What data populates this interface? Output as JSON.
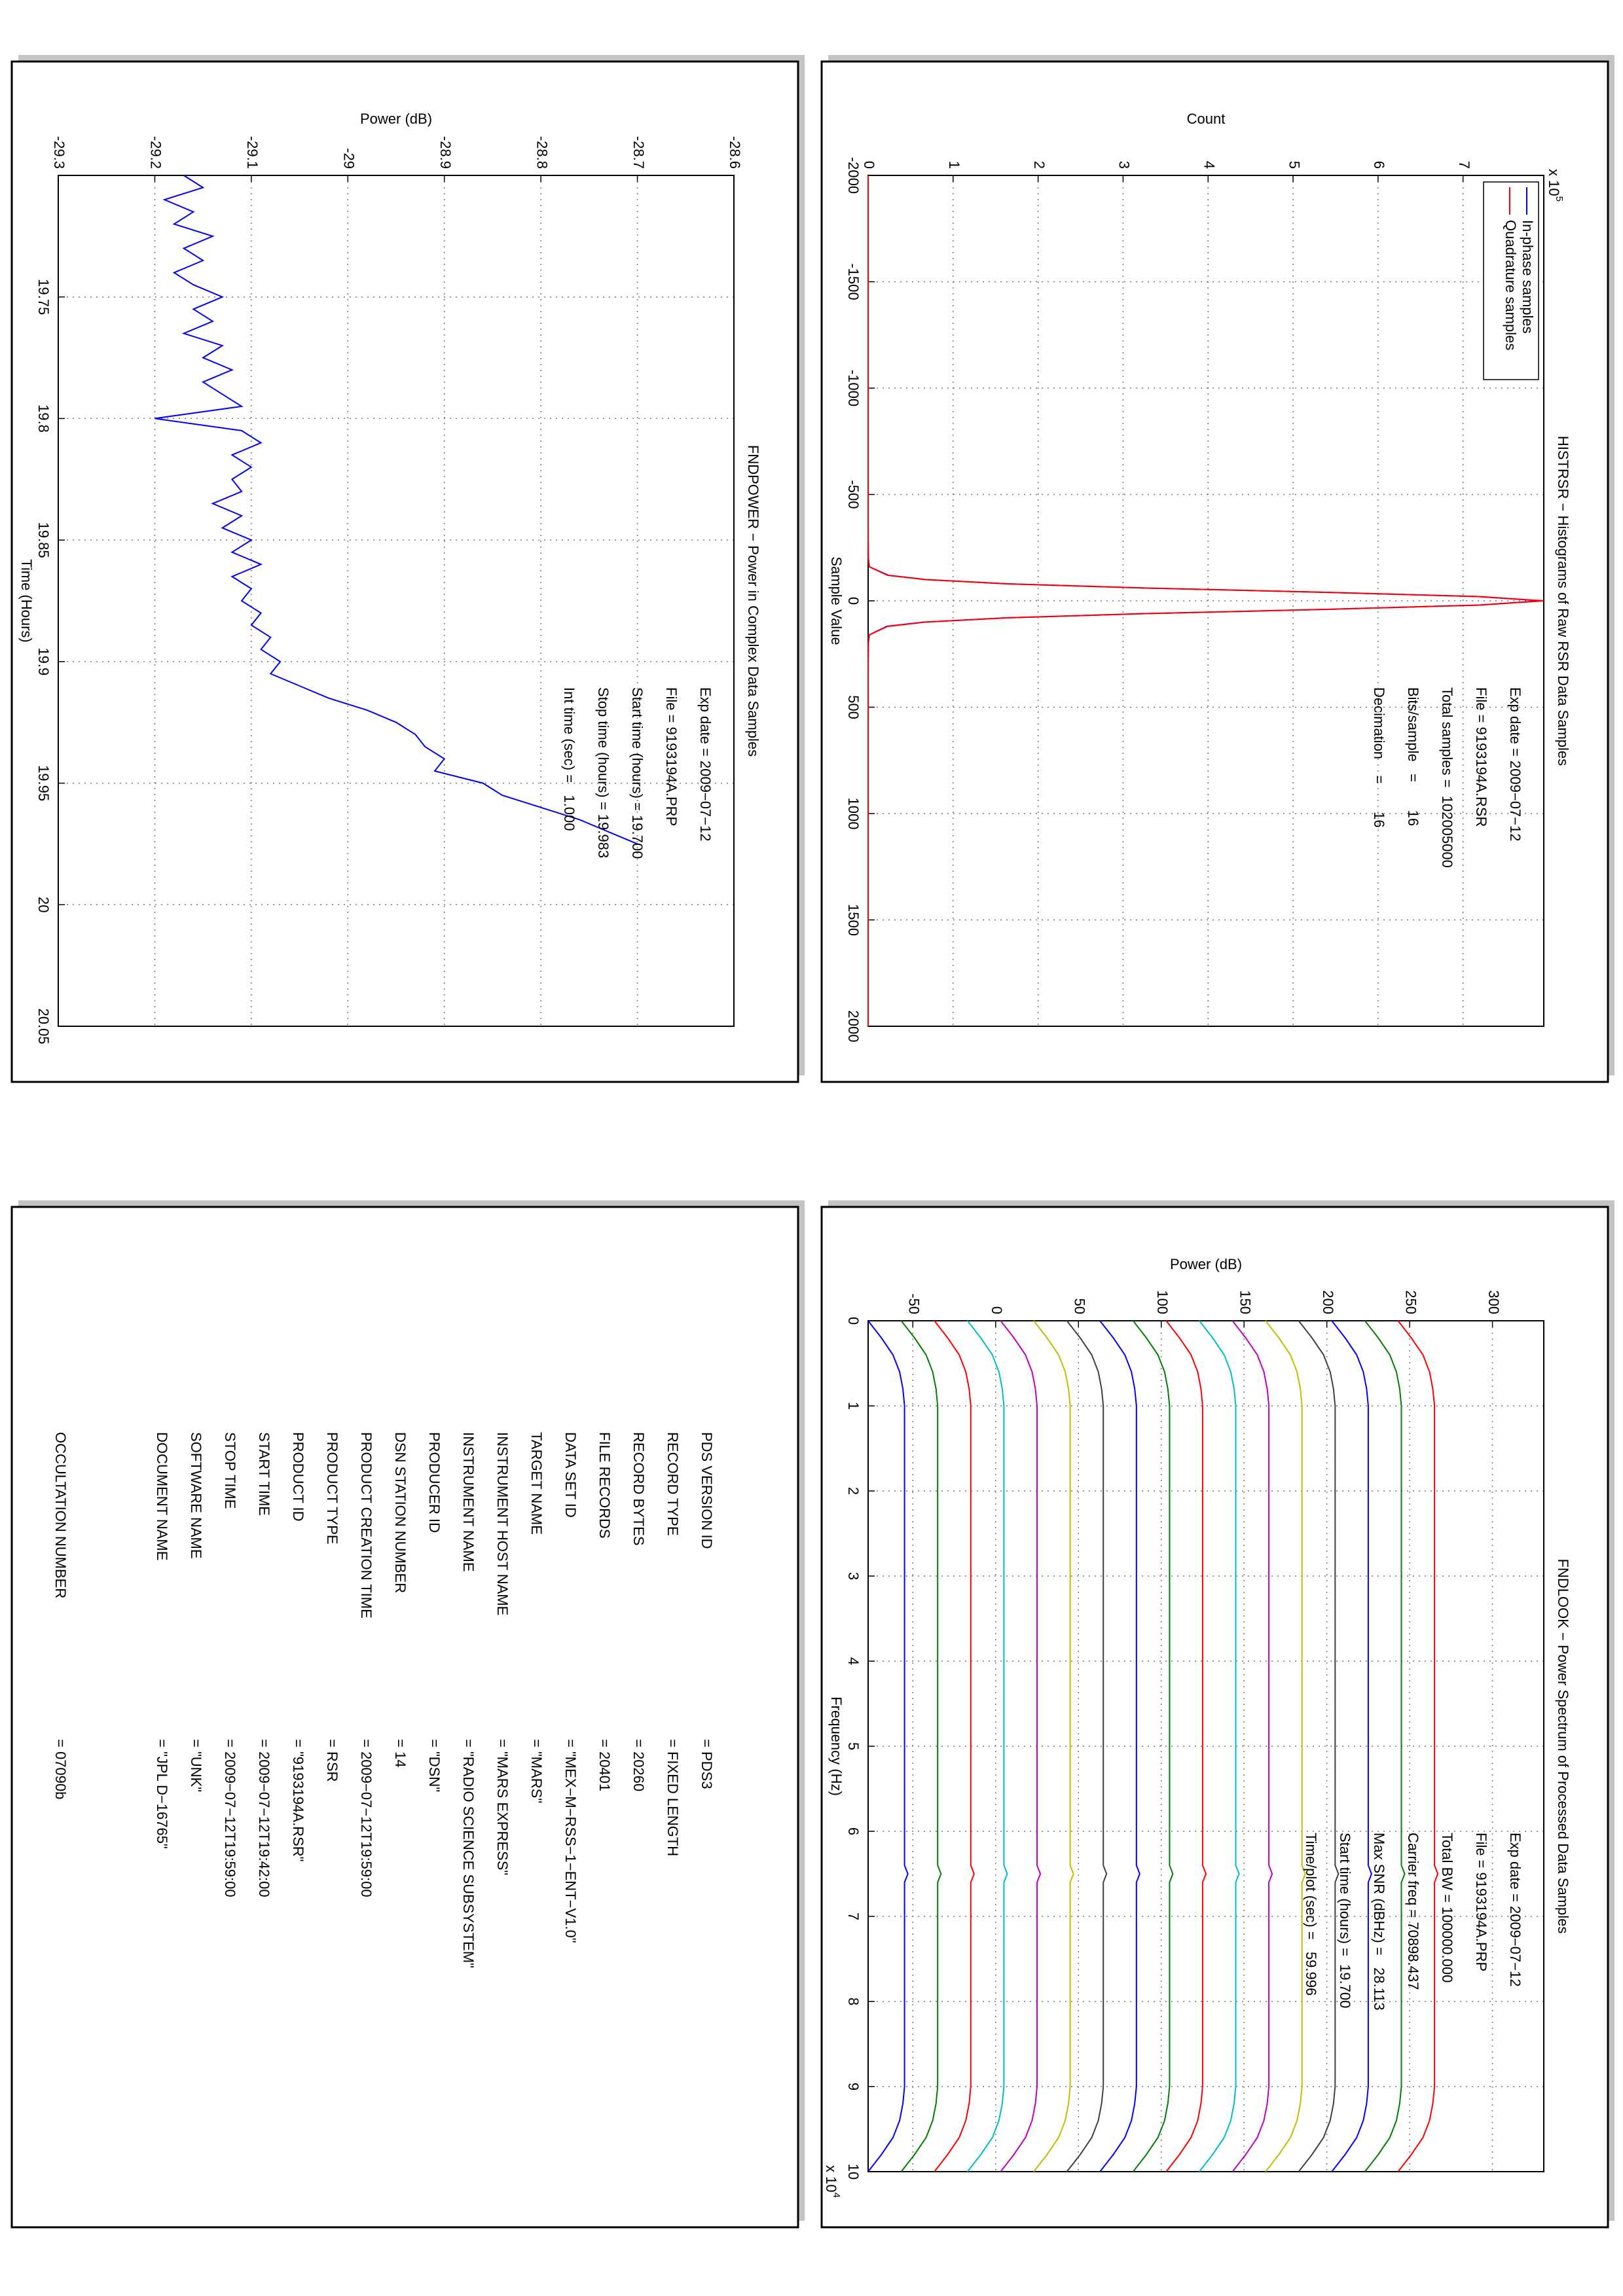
{
  "chart_data": [
    {
      "type": "line",
      "title": "FNDPOWER − Power in Complex Data Samples",
      "x_label": "Time (Hours)",
      "y_label": "Power (dB)",
      "x": [
        19.7,
        19.705,
        19.71,
        19.715,
        19.72,
        19.725,
        19.73,
        19.735,
        19.74,
        19.745,
        19.75,
        19.755,
        19.76,
        19.765,
        19.77,
        19.775,
        19.78,
        19.785,
        19.79,
        19.795,
        19.8,
        19.805,
        19.81,
        19.815,
        19.82,
        19.825,
        19.83,
        19.835,
        19.84,
        19.845,
        19.85,
        19.855,
        19.86,
        19.865,
        19.87,
        19.875,
        19.88,
        19.885,
        19.89,
        19.895,
        19.9,
        19.905,
        19.91,
        19.915,
        19.92,
        19.925,
        19.93,
        19.935,
        19.94,
        19.945,
        19.95,
        19.955,
        19.96,
        19.965,
        19.97,
        19.975
      ],
      "values": [
        -29.17,
        -29.15,
        -29.19,
        -29.16,
        -29.18,
        -29.14,
        -29.17,
        -29.15,
        -29.18,
        -29.16,
        -29.13,
        -29.16,
        -29.14,
        -29.17,
        -29.13,
        -29.15,
        -29.12,
        -29.15,
        -29.13,
        -29.11,
        -29.2,
        -29.11,
        -29.09,
        -29.12,
        -29.1,
        -29.12,
        -29.11,
        -29.14,
        -29.11,
        -29.13,
        -29.1,
        -29.12,
        -29.09,
        -29.12,
        -29.1,
        -29.11,
        -29.09,
        -29.1,
        -29.08,
        -29.09,
        -29.07,
        -29.08,
        -29.05,
        -29.02,
        -28.98,
        -28.95,
        -28.93,
        -28.92,
        -28.9,
        -28.91,
        -28.86,
        -28.84,
        -28.8,
        -28.76,
        -28.73,
        -28.7
      ],
      "color": "#0000ff",
      "xlim": [
        19.7,
        20.05
      ],
      "xticks": [
        19.75,
        19.8,
        19.85,
        19.9,
        19.95,
        20,
        20.05
      ],
      "ylim": [
        -29.3,
        -28.6
      ],
      "yticks": [
        -29.3,
        -29.2,
        -29.1,
        -29,
        -28.9,
        -28.8,
        -28.7,
        -28.6
      ],
      "grid": true,
      "annotations": [
        "Exp date = 2009−07−12",
        "File = 9193194A.PRP",
        "Start time (hours) = 19.700",
        "Stop time (hours) = 19.983",
        "Int time (sec) =   1.000"
      ]
    },
    {
      "type": "line",
      "title": "HISTRSR − Histograms of Raw RSR Data Samples",
      "x_label": "Sample Value",
      "y_label": "Count",
      "y_multiplier": {
        "text": "x 10",
        "exponent": 5
      },
      "x": [
        -2000,
        -1000,
        -300,
        -200,
        -160,
        -120,
        -100,
        -80,
        -60,
        -40,
        -20,
        0,
        20,
        40,
        60,
        80,
        100,
        120,
        160,
        200,
        300,
        1000,
        2000
      ],
      "series": [
        {
          "name": "In-phase samples",
          "color": "#0000ff",
          "values": [
            0,
            0,
            0,
            0.002,
            0.015,
            0.24,
            0.68,
            1.64,
            3.28,
            5.38,
            7.18,
            7.92,
            7.19,
            5.4,
            3.26,
            1.62,
            0.66,
            0.22,
            0.013,
            0.002,
            0,
            0,
            0
          ]
        },
        {
          "name": "Quadrature samples",
          "color": "#ff0000",
          "values": [
            0,
            0,
            0,
            0.002,
            0.014,
            0.23,
            0.67,
            1.63,
            3.27,
            5.39,
            7.2,
            7.95,
            7.2,
            5.39,
            3.27,
            1.63,
            0.67,
            0.23,
            0.014,
            0.002,
            0,
            0,
            0
          ]
        }
      ],
      "legend": "upper left",
      "xlim": [
        -2000,
        2000
      ],
      "xticks": [
        -2000,
        -1500,
        -1000,
        -500,
        0,
        500,
        1000,
        1500,
        2000
      ],
      "ylim": [
        0,
        7.95
      ],
      "yticks": [
        0,
        1,
        2,
        3,
        4,
        5,
        6,
        7
      ],
      "grid": true,
      "annotations": [
        "Exp date = 2009−07−12",
        "File = 9193194A.RSR",
        "Total samples =  102005000",
        "Bits/sample   =       16",
        "Decimation    =       16"
      ]
    },
    {
      "type": "line",
      "title": "FNDLOOK − Power Spectrum of Processed Data Samples",
      "x_label": "Frequency (Hz)",
      "y_label": "Power (dB)",
      "x_multiplier": {
        "text": "x 10",
        "exponent": 4
      },
      "x": [
        0,
        0.2,
        0.4,
        0.6,
        0.8,
        1,
        2,
        3,
        4,
        5,
        6,
        6.4,
        6.5,
        6.6,
        7,
        8,
        9,
        9.2,
        9.4,
        9.6,
        9.8,
        10
      ],
      "series": [
        {
          "color": "#0000ff",
          "values": [
            -77,
            -69,
            -62,
            -58,
            -56,
            -55,
            -55,
            -55,
            -55,
            -55,
            -55,
            -55,
            -53,
            -55,
            -55,
            -55,
            -55,
            -56,
            -58,
            -62,
            -69,
            -77
          ]
        },
        {
          "color": "#008000",
          "values": [
            -57,
            -49,
            -42,
            -38,
            -36,
            -35,
            -35,
            -35,
            -35,
            -35,
            -35,
            -35,
            -33,
            -35,
            -35,
            -35,
            -35,
            -36,
            -38,
            -42,
            -49,
            -57
          ]
        },
        {
          "color": "#ff0000",
          "values": [
            -37,
            -29,
            -22,
            -18,
            -16,
            -15,
            -15,
            -15,
            -15,
            -15,
            -15,
            -15,
            -13,
            -15,
            -15,
            -15,
            -15,
            -16,
            -18,
            -22,
            -29,
            -37
          ]
        },
        {
          "color": "#00bfbf",
          "values": [
            -17,
            -9,
            -2,
            2,
            4,
            5,
            5,
            5,
            5,
            5,
            5,
            5,
            7,
            5,
            5,
            5,
            5,
            4,
            2,
            -2,
            -9,
            -17
          ]
        },
        {
          "color": "#bf00bf",
          "values": [
            3,
            11,
            18,
            22,
            24,
            25,
            25,
            25,
            25,
            25,
            25,
            25,
            27,
            25,
            25,
            25,
            25,
            24,
            22,
            18,
            11,
            3
          ]
        },
        {
          "color": "#bfbf00",
          "values": [
            23,
            31,
            38,
            42,
            44,
            45,
            45,
            45,
            45,
            45,
            45,
            45,
            47,
            45,
            45,
            45,
            45,
            44,
            42,
            38,
            31,
            23
          ]
        },
        {
          "color": "#404040",
          "values": [
            43,
            51,
            58,
            62,
            64,
            65,
            65,
            65,
            65,
            65,
            65,
            65,
            67,
            65,
            65,
            65,
            65,
            64,
            62,
            58,
            51,
            43
          ]
        },
        {
          "color": "#0000ff",
          "values": [
            63,
            71,
            78,
            82,
            84,
            85,
            85,
            85,
            85,
            85,
            85,
            85,
            87,
            85,
            85,
            85,
            85,
            84,
            82,
            78,
            71,
            63
          ]
        },
        {
          "color": "#008000",
          "values": [
            83,
            91,
            98,
            102,
            104,
            105,
            105,
            105,
            105,
            105,
            105,
            105,
            107,
            105,
            105,
            105,
            105,
            104,
            102,
            98,
            91,
            83
          ]
        },
        {
          "color": "#ff0000",
          "values": [
            103,
            111,
            118,
            122,
            124,
            125,
            125,
            125,
            125,
            125,
            125,
            125,
            127,
            125,
            125,
            125,
            125,
            124,
            122,
            118,
            111,
            103
          ]
        },
        {
          "color": "#00bfbf",
          "values": [
            123,
            131,
            138,
            142,
            144,
            145,
            145,
            145,
            145,
            145,
            145,
            145,
            147,
            145,
            145,
            145,
            145,
            144,
            142,
            138,
            131,
            123
          ]
        },
        {
          "color": "#bf00bf",
          "values": [
            143,
            151,
            158,
            162,
            164,
            165,
            165,
            165,
            165,
            165,
            165,
            165,
            167,
            165,
            165,
            165,
            165,
            164,
            162,
            158,
            151,
            143
          ]
        },
        {
          "color": "#bfbf00",
          "values": [
            163,
            171,
            178,
            182,
            184,
            185,
            185,
            185,
            185,
            185,
            185,
            185,
            187,
            185,
            185,
            185,
            185,
            184,
            182,
            178,
            171,
            163
          ]
        },
        {
          "color": "#404040",
          "values": [
            183,
            191,
            198,
            202,
            204,
            205,
            205,
            205,
            205,
            205,
            205,
            205,
            207,
            205,
            205,
            205,
            205,
            204,
            202,
            198,
            191,
            183
          ]
        },
        {
          "color": "#0000ff",
          "values": [
            203,
            211,
            218,
            222,
            224,
            225,
            225,
            225,
            225,
            225,
            225,
            225,
            227,
            225,
            225,
            225,
            225,
            224,
            222,
            218,
            211,
            203
          ]
        },
        {
          "color": "#008000",
          "values": [
            223,
            231,
            238,
            242,
            244,
            245,
            245,
            245,
            245,
            245,
            245,
            245,
            247,
            245,
            245,
            245,
            245,
            244,
            242,
            238,
            231,
            223
          ]
        },
        {
          "color": "#ff0000",
          "values": [
            243,
            251,
            258,
            262,
            264,
            265,
            265,
            265,
            265,
            265,
            265,
            265,
            267,
            265,
            265,
            265,
            265,
            264,
            262,
            258,
            251,
            243
          ]
        }
      ],
      "xlim": [
        0,
        10
      ],
      "xticks": [
        0,
        1,
        2,
        3,
        4,
        5,
        6,
        7,
        8,
        9,
        10
      ],
      "ylim": [
        -77,
        331
      ],
      "yticks": [
        -50,
        0,
        50,
        100,
        150,
        200,
        250,
        300
      ],
      "grid": true,
      "annotations": [
        "Exp date = 2009−07−12",
        "File = 9193194A.PRP",
        "Total BW = 100000.000",
        "Carrier freq = 70898.437",
        "Max SNR (dBHz) =   28.113",
        "Start time (hours) =  19.700",
        "Time/plot (sec) =   59.996"
      ]
    }
  ],
  "label_table": {
    "rows": [
      [
        "PDS VERSION ID",
        "= PDS3"
      ],
      [
        "RECORD TYPE",
        "= FIXED LENGTH"
      ],
      [
        "RECORD BYTES",
        "= 20260"
      ],
      [
        "FILE RECORDS",
        "= 20401"
      ],
      [
        "DATA SET ID",
        "= \"MEX−M−RSS−1−ENT−V1.0\""
      ],
      [
        "TARGET NAME",
        "= \"MARS\""
      ],
      [
        "INSTRUMENT HOST NAME",
        "= \"MARS EXPRESS\""
      ],
      [
        "INSTRUMENT NAME",
        "= \"RADIO SCIENCE SUBSYSTEM\""
      ],
      [
        "PRODUCER ID",
        "= \"DSN\""
      ],
      [
        "DSN STATION NUMBER",
        "= 14"
      ],
      [
        "PRODUCT CREATION TIME",
        "= 2009−07−12T19:59:00"
      ],
      [
        "PRODUCT TYPE",
        "= RSR"
      ],
      [
        "PRODUCT ID",
        "= \"9193194A.RSR\""
      ],
      [
        "START TIME",
        "= 2009−07−12T19:42:00"
      ],
      [
        "STOP TIME",
        "= 2009−07−12T19:59:00"
      ],
      [
        "SOFTWARE NAME",
        "= \"UNK\""
      ],
      [
        "DOCUMENT NAME",
        "= \"JPL D−16765\""
      ],
      [
        "OCCULTATION NUMBER",
        "= 07090b"
      ]
    ]
  }
}
